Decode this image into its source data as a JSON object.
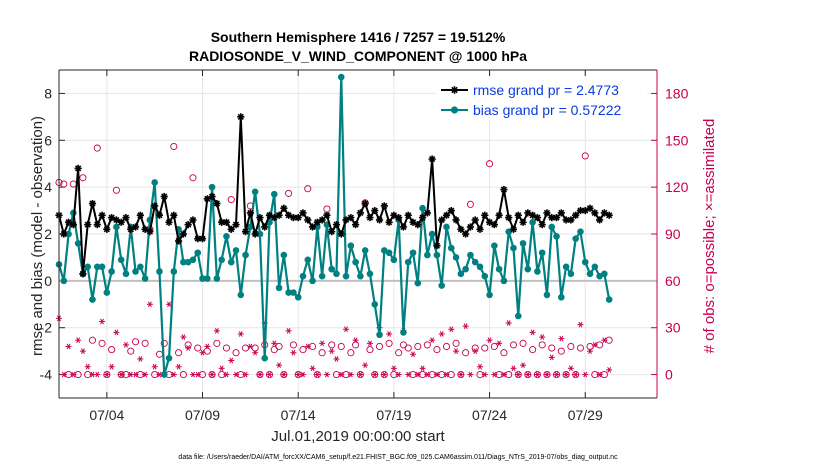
{
  "figure": {
    "footnote": "data file: /Users/raeder/DAI/ATM_forcXX/CAM6_setup/f.e21.FHIST_BGC.f09_025.CAM6assim.011/Diags_NTrS_2019-07/obs_diag_output.nc"
  },
  "chart_data": {
    "type": "line",
    "title": "Southern Hemisphere 1416 / 7257 = 19.512%",
    "subtitle": "RADIOSONDE_V_WIND_COMPONENT @ 1000 hPa",
    "xlabel": "Jul.01,2019 00:00:00 start",
    "ylabel": "rmse and bias (model - observation)",
    "y2label": "# of obs: o=possible; ×=assimilated",
    "xlim": [
      0.5,
      31.75
    ],
    "ylim": [
      -5,
      9
    ],
    "y2lim": [
      -15,
      195
    ],
    "x_ticks": [
      3,
      8,
      13,
      18,
      23,
      28
    ],
    "x_ticklabels": [
      "07/04",
      "07/09",
      "07/14",
      "07/19",
      "07/24",
      "07/29"
    ],
    "y_ticks": [
      -4,
      -2,
      0,
      2,
      4,
      6,
      8
    ],
    "y2_ticks": [
      0,
      30,
      60,
      90,
      120,
      150,
      180
    ],
    "zero_line": 0,
    "time_step_days": 0.25,
    "series": [
      {
        "name": "rmse",
        "legend": "rmse grand pr = 2.4773",
        "color": "#000000",
        "marker": "asterisk",
        "start": 0.5,
        "values": [
          2.8,
          2.0,
          2.5,
          2.4,
          4.8,
          0.3,
          2.4,
          3.3,
          2.4,
          2.8,
          2.2,
          2.7,
          2.6,
          2.5,
          2.7,
          2.2,
          2.3,
          2.8,
          2.2,
          2.1,
          3.2,
          2.8,
          3.6,
          2.5,
          2.8,
          1.7,
          2.0,
          2.4,
          2.6,
          1.8,
          1.8,
          3.5,
          3.6,
          3.3,
          2.5,
          2.5,
          2.2,
          2.4,
          7.0,
          2.1,
          2.9,
          2.0,
          2.7,
          2.3,
          2.8,
          2.7,
          2.8,
          3.1,
          2.8,
          2.7,
          2.7,
          2.9,
          2.6,
          2.3,
          2.5,
          2.6,
          2.8,
          2.1,
          2.4,
          2.0,
          2.6,
          2.7,
          2.4,
          2.9,
          3.3,
          2.7,
          3.0,
          2.6,
          3.2,
          2.5,
          2.8,
          2.7,
          2.3,
          2.8,
          2.5,
          2.4,
          2.7,
          2.9,
          5.2,
          1.5,
          2.6,
          2.8,
          3.0,
          2.6,
          2.2,
          2.0,
          2.3,
          2.6,
          2.2,
          2.8,
          2.5,
          2.4,
          2.8,
          3.9,
          2.7,
          2.2,
          2.8,
          2.5,
          2.9,
          2.8,
          2.7,
          2.4,
          2.9,
          2.7,
          2.7,
          2.9,
          2.6,
          2.6,
          2.8,
          3.0,
          3.0,
          3.1,
          2.9,
          2.6,
          2.9,
          2.8
        ]
      },
      {
        "name": "bias",
        "legend": "bias grand pr = 0.57222",
        "color": "#008080",
        "marker": "dot",
        "start": 0.5,
        "values": [
          0.7,
          0.0,
          2.0,
          2.9,
          1.6,
          0.3,
          0.6,
          -0.8,
          0.6,
          0.6,
          -0.5,
          0.4,
          2.3,
          0.9,
          0.3,
          2.3,
          0.4,
          0.6,
          0.1,
          2.6,
          4.2,
          0.4,
          -4.0,
          -3.3,
          0.4,
          2.2,
          0.8,
          0.8,
          0.9,
          1.2,
          0.1,
          0.1,
          4.0,
          0.1,
          0.9,
          1.9,
          0.8,
          1.3,
          -0.6,
          1.1,
          2.3,
          3.8,
          2.0,
          -3.3,
          2.5,
          3.7,
          -0.3,
          1.1,
          -0.5,
          -0.5,
          -0.7,
          0.2,
          0.9,
          0.0,
          2.3,
          0.2,
          2.4,
          0.5,
          0.3,
          8.7,
          0.2,
          1.5,
          0.8,
          0.2,
          1.3,
          0.3,
          -1.0,
          -2.3,
          1.3,
          1.2,
          0.9,
          2.6,
          -2.2,
          0.8,
          1.2,
          -0.1,
          3.1,
          1.1,
          2.0,
          1.1,
          -0.2,
          2.3,
          1.4,
          1.0,
          0.3,
          0.5,
          1.1,
          0.8,
          0.6,
          0.2,
          -0.6,
          1.5,
          0.5,
          0.0,
          2.1,
          1.4,
          -1.5,
          1.6,
          0.5,
          2.5,
          0.4,
          1.2,
          -0.6,
          2.3,
          1.9,
          -0.7,
          0.6,
          0.3,
          1.8,
          2.1,
          0.8,
          0.3,
          0.6,
          0.2,
          0.3,
          -0.8
        ]
      },
      {
        "name": "obs possible",
        "color": "#c8004f",
        "marker": "circle",
        "axis": "right",
        "start": 0.5,
        "values": [
          123,
          122,
          0,
          122,
          0,
          126,
          0,
          22,
          145,
          20,
          0,
          16,
          118,
          0,
          0,
          15,
          21,
          0,
          20,
          93,
          0,
          13,
          20,
          0,
          146,
          14,
          0,
          19,
          126,
          17,
          0,
          15,
          0,
          20,
          0,
          17,
          112,
          14,
          0,
          17,
          108,
          17,
          0,
          19,
          0,
          16,
          18,
          0,
          116,
          19,
          0,
          16,
          119,
          18,
          0,
          14,
          106,
          19,
          0,
          18,
          0,
          14,
          19,
          0,
          110,
          16,
          0,
          18,
          0,
          20,
          0,
          14,
          19,
          17,
          0,
          18,
          0,
          19,
          0,
          16,
          0,
          18,
          0,
          20,
          0,
          14,
          109,
          17,
          0,
          17,
          135,
          18,
          0,
          14,
          0,
          19,
          0,
          20,
          0,
          16,
          0,
          19,
          0,
          17,
          0,
          15,
          0,
          18,
          0,
          17,
          140,
          18,
          0,
          19,
          0,
          22
        ]
      },
      {
        "name": "obs assimilated",
        "color": "#c8004f",
        "marker": "asterisk",
        "axis": "right",
        "start": 0.5,
        "values": [
          36,
          0,
          18,
          0,
          22,
          15,
          5,
          0,
          0,
          34,
          0,
          5,
          27,
          0,
          19,
          0,
          0,
          10,
          0,
          45,
          5,
          0,
          0,
          45,
          0,
          5,
          24,
          17,
          0,
          0,
          14,
          18,
          0,
          28,
          4,
          0,
          9,
          0,
          26,
          0,
          18,
          14,
          0,
          33,
          0,
          20,
          6,
          0,
          28,
          14,
          0,
          0,
          18,
          4,
          0,
          20,
          0,
          15,
          10,
          0,
          29,
          0,
          22,
          0,
          6,
          20,
          0,
          30,
          0,
          26,
          4,
          0,
          28,
          0,
          13,
          0,
          4,
          0,
          22,
          0,
          26,
          0,
          29,
          15,
          0,
          31,
          0,
          15,
          5,
          0,
          22,
          0,
          20,
          0,
          33,
          4,
          0,
          6,
          0,
          27,
          0,
          24,
          0,
          11,
          0,
          23,
          0,
          4,
          0,
          32,
          0,
          15,
          19,
          0,
          22,
          3
        ]
      }
    ]
  }
}
